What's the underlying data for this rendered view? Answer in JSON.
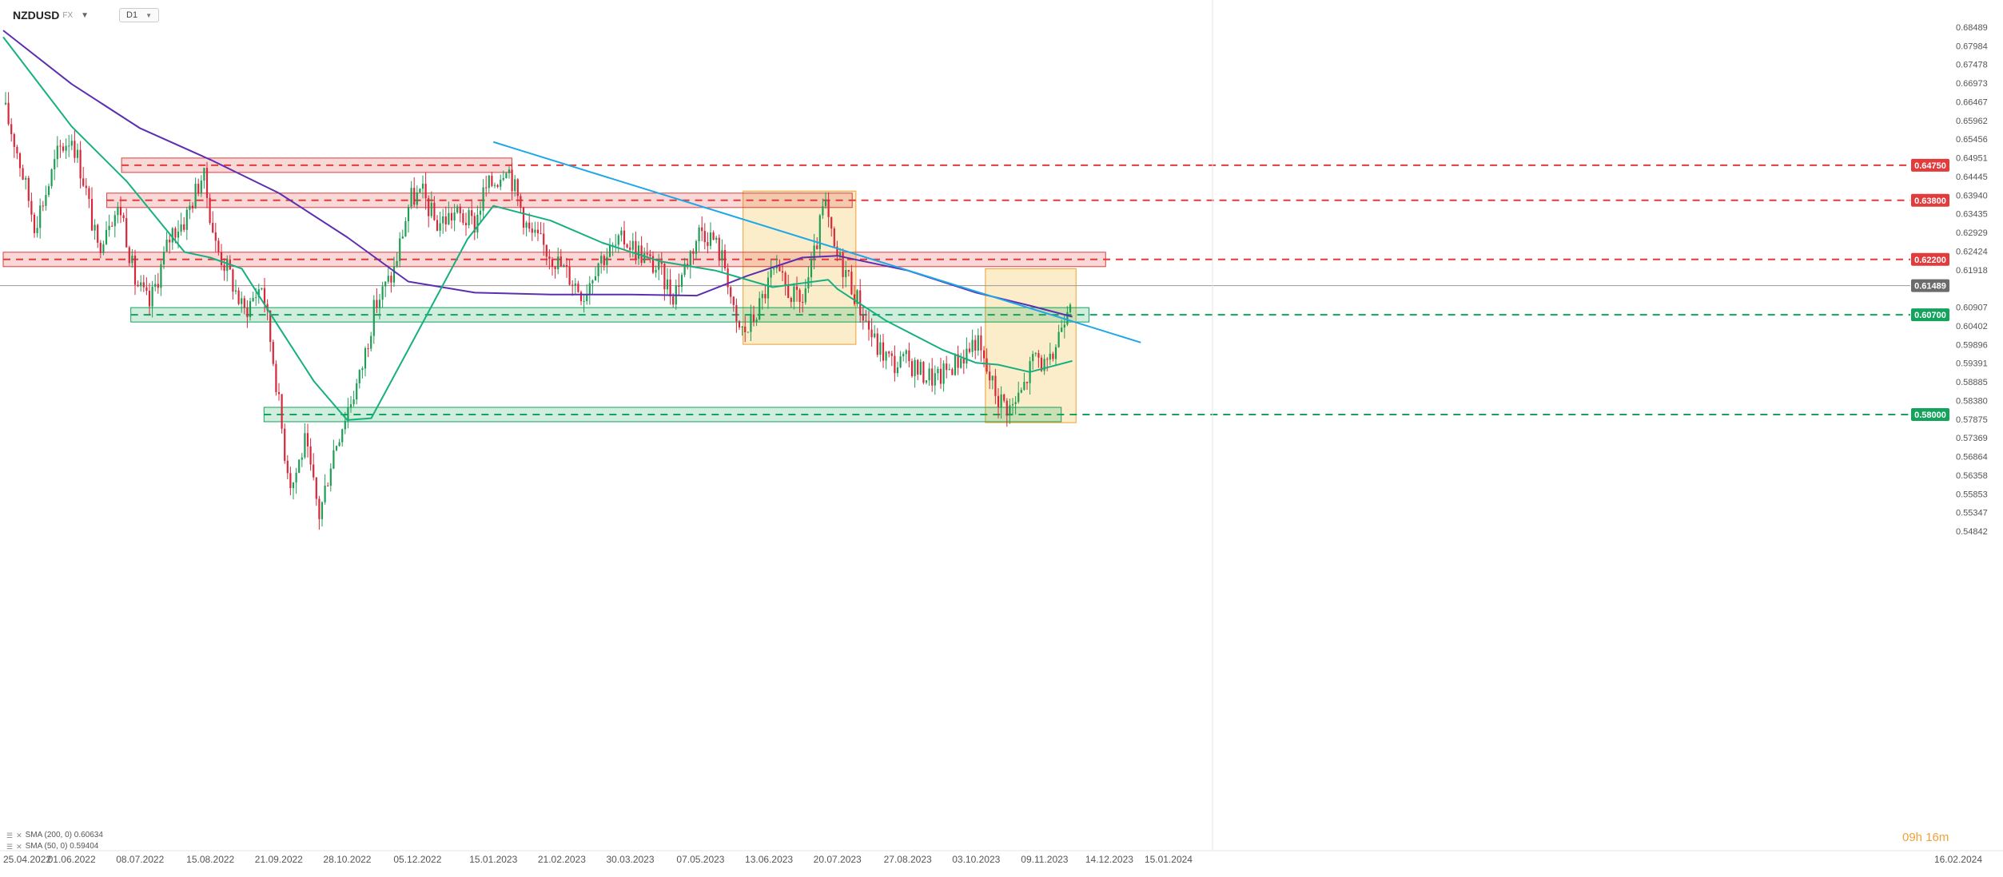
{
  "header": {
    "symbol": "NZDUSD",
    "market": "FX",
    "timeframe": "D1"
  },
  "legend": [
    {
      "label": "SMA (200, 0) 0.60634",
      "color": "#5b2fb0"
    },
    {
      "label": "SMA (50, 0) 0.59404",
      "color": "#16b080"
    }
  ],
  "countdown": "09h 16m",
  "chart_data": {
    "type": "candlestick",
    "instrument": "NZDUSD",
    "timeframe": "D1",
    "current_price": 0.61489,
    "y_axis_ticks": [
      0.68489,
      0.67984,
      0.67478,
      0.66973,
      0.66467,
      0.65962,
      0.65456,
      0.64951,
      0.64445,
      0.6394,
      0.63435,
      0.62929,
      0.62424,
      0.61918,
      0.61489,
      0.60907,
      0.60402,
      0.59896,
      0.59391,
      0.58885,
      0.5838,
      0.57875,
      0.57369,
      0.56864,
      0.56358,
      0.55853,
      0.55347,
      0.54842
    ],
    "x_axis_ticks": [
      "25.04.2022",
      "01.06.2022",
      "08.07.2022",
      "15.08.2022",
      "21.09.2022",
      "28.10.2022",
      "05.12.2022",
      "15.01.2023",
      "21.02.2023",
      "30.03.2023",
      "07.05.2023",
      "13.06.2023",
      "20.07.2023",
      "27.08.2023",
      "03.10.2023",
      "09.11.2023",
      "14.12.2023",
      "15.01.2024",
      "16.02.2024"
    ],
    "levels": [
      {
        "label": "0.64750",
        "price": 0.6475,
        "color": "#e23b3b",
        "zone_from": "28.06.2022",
        "zone_to": "25.01.2023"
      },
      {
        "label": "0.63800",
        "price": 0.638,
        "color": "#e23b3b",
        "zone_from": "20.06.2022",
        "zone_to": "28.07.2023"
      },
      {
        "label": "0.62200",
        "price": 0.622,
        "color": "#e23b3b",
        "zone_from": "25.04.2022",
        "zone_to": "12.12.2023"
      },
      {
        "label": "0.60700",
        "price": 0.607,
        "color": "#14a35c",
        "zone_from": "03.07.2022",
        "zone_to": "03.12.2023"
      },
      {
        "label": "0.58000",
        "price": 0.58,
        "color": "#14a35c",
        "zone_from": "13.09.2022",
        "zone_to": "18.11.2023"
      }
    ],
    "trendline": {
      "from": {
        "date": "15.01.2023",
        "price": 0.6538
      },
      "to": {
        "date": "31.12.2023",
        "price": 0.5995
      },
      "color": "#1ea7e8"
    },
    "highlight_boxes": [
      {
        "from": "30.05.2023",
        "to": "30.07.2023",
        "price_top": 0.6405,
        "price_bottom": 0.599,
        "color": "#f0c040"
      },
      {
        "from": "08.10.2023",
        "to": "26.11.2023",
        "price_top": 0.6195,
        "price_bottom": 0.5778,
        "color": "#f0c040"
      }
    ],
    "sma200": {
      "name": "SMA (200, 0)",
      "value": 0.60634,
      "color": "#5b2fb0",
      "points": [
        [
          "25.04.2022",
          0.684
        ],
        [
          "01.06.2022",
          0.6695
        ],
        [
          "08.07.2022",
          0.6575
        ],
        [
          "15.08.2022",
          0.649
        ],
        [
          "21.09.2022",
          0.64
        ],
        [
          "28.10.2022",
          0.628
        ],
        [
          "30.11.2022",
          0.616
        ],
        [
          "05.01.2023",
          0.613
        ],
        [
          "15.02.2023",
          0.6125
        ],
        [
          "30.03.2023",
          0.6125
        ],
        [
          "05.05.2023",
          0.6122
        ],
        [
          "01.06.2023",
          0.6175
        ],
        [
          "01.07.2023",
          0.6225
        ],
        [
          "20.07.2023",
          0.623
        ],
        [
          "27.08.2023",
          0.619
        ],
        [
          "03.10.2023",
          0.613
        ],
        [
          "01.11.2023",
          0.6095
        ],
        [
          "24.11.2023",
          0.6065
        ]
      ]
    },
    "sma50": {
      "name": "SMA (50, 0)",
      "value": 0.59404,
      "color": "#16b080",
      "points": [
        [
          "25.04.2022",
          0.6822
        ],
        [
          "01.06.2022",
          0.658
        ],
        [
          "01.07.2022",
          0.643
        ],
        [
          "01.08.2022",
          0.624
        ],
        [
          "15.08.2022",
          0.6225
        ],
        [
          "01.09.2022",
          0.6195
        ],
        [
          "20.09.2022",
          0.6045
        ],
        [
          "10.10.2022",
          0.589
        ],
        [
          "28.10.2022",
          0.5785
        ],
        [
          "10.11.2022",
          0.579
        ],
        [
          "01.12.2022",
          0.5985
        ],
        [
          "01.01.2023",
          0.6275
        ],
        [
          "15.01.2023",
          0.6365
        ],
        [
          "15.02.2023",
          0.6325
        ],
        [
          "15.03.2023",
          0.6265
        ],
        [
          "15.04.2023",
          0.6215
        ],
        [
          "15.05.2023",
          0.619
        ],
        [
          "15.06.2023",
          0.6145
        ],
        [
          "15.07.2023",
          0.6165
        ],
        [
          "20.07.2023",
          0.614
        ],
        [
          "15.08.2023",
          0.6055
        ],
        [
          "15.09.2023",
          0.5975
        ],
        [
          "03.10.2023",
          0.594
        ],
        [
          "15.10.2023",
          0.5935
        ],
        [
          "01.11.2023",
          0.5915
        ],
        [
          "24.11.2023",
          0.5945
        ]
      ]
    },
    "close_path": [
      [
        "25.04.2022",
        0.664
      ],
      [
        "02.05.2022",
        0.6525
      ],
      [
        "12.05.2022",
        0.6315
      ],
      [
        "19.05.2022",
        0.6415
      ],
      [
        "25.05.2022",
        0.6515
      ],
      [
        "01.06.2022",
        0.6555
      ],
      [
        "08.06.2022",
        0.6425
      ],
      [
        "15.06.2022",
        0.6245
      ],
      [
        "21.06.2022",
        0.6335
      ],
      [
        "28.06.2022",
        0.6355
      ],
      [
        "05.07.2022",
        0.6165
      ],
      [
        "13.07.2022",
        0.6095
      ],
      [
        "25.07.2022",
        0.6295
      ],
      [
        "01.08.2022",
        0.6325
      ],
      [
        "11.08.2022",
        0.6455
      ],
      [
        "18.08.2022",
        0.6255
      ],
      [
        "25.08.2022",
        0.6185
      ],
      [
        "02.09.2022",
        0.6075
      ],
      [
        "12.09.2022",
        0.6155
      ],
      [
        "19.09.2022",
        0.5915
      ],
      [
        "24.09.2022",
        0.5705
      ],
      [
        "28.09.2022",
        0.5605
      ],
      [
        "05.10.2022",
        0.5725
      ],
      [
        "13.10.2022",
        0.5525
      ],
      [
        "20.10.2022",
        0.5695
      ],
      [
        "28.10.2022",
        0.5815
      ],
      [
        "04.11.2022",
        0.5905
      ],
      [
        "12.11.2022",
        0.6095
      ],
      [
        "22.11.2022",
        0.6185
      ],
      [
        "01.12.2022",
        0.6385
      ],
      [
        "08.12.2022",
        0.6395
      ],
      [
        "15.12.2022",
        0.6315
      ],
      [
        "25.12.2022",
        0.6345
      ],
      [
        "05.01.2023",
        0.6315
      ],
      [
        "10.01.2023",
        0.6405
      ],
      [
        "18.01.2023",
        0.6445
      ],
      [
        "22.01.2023",
        0.6485
      ],
      [
        "27.01.2023",
        0.6405
      ],
      [
        "03.02.2023",
        0.6295
      ],
      [
        "15.02.2023",
        0.6235
      ],
      [
        "25.02.2023",
        0.6175
      ],
      [
        "05.03.2023",
        0.6125
      ],
      [
        "12.03.2023",
        0.6215
      ],
      [
        "20.03.2023",
        0.6245
      ],
      [
        "27.03.2023",
        0.6275
      ],
      [
        "05.04.2023",
        0.6235
      ],
      [
        "15.04.2023",
        0.6185
      ],
      [
        "22.04.2023",
        0.6125
      ],
      [
        "28.04.2023",
        0.6195
      ],
      [
        "07.05.2023",
        0.6305
      ],
      [
        "14.05.2023",
        0.6275
      ],
      [
        "21.05.2023",
        0.6195
      ],
      [
        "26.05.2023",
        0.6035
      ],
      [
        "01.06.2023",
        0.6025
      ],
      [
        "08.06.2023",
        0.6095
      ],
      [
        "15.06.2023",
        0.6185
      ],
      [
        "22.06.2023",
        0.6145
      ],
      [
        "30.06.2023",
        0.6095
      ],
      [
        "07.07.2023",
        0.6215
      ],
      [
        "13.07.2023",
        0.6375
      ],
      [
        "18.07.2023",
        0.6245
      ],
      [
        "25.07.2023",
        0.6185
      ],
      [
        "01.08.2023",
        0.6095
      ],
      [
        "10.08.2023",
        0.5985
      ],
      [
        "20.08.2023",
        0.5935
      ],
      [
        "27.08.2023",
        0.5945
      ],
      [
        "03.09.2023",
        0.5915
      ],
      [
        "12.09.2023",
        0.5895
      ],
      [
        "20.09.2023",
        0.5935
      ],
      [
        "27.09.2023",
        0.5965
      ],
      [
        "03.10.2023",
        0.6005
      ],
      [
        "08.10.2023",
        0.5925
      ],
      [
        "15.10.2023",
        0.5845
      ],
      [
        "22.10.2023",
        0.5815
      ],
      [
        "28.10.2023",
        0.5865
      ],
      [
        "04.11.2023",
        0.5965
      ],
      [
        "11.11.2023",
        0.5915
      ],
      [
        "18.11.2023",
        0.6045
      ],
      [
        "24.11.2023",
        0.6149
      ]
    ]
  }
}
